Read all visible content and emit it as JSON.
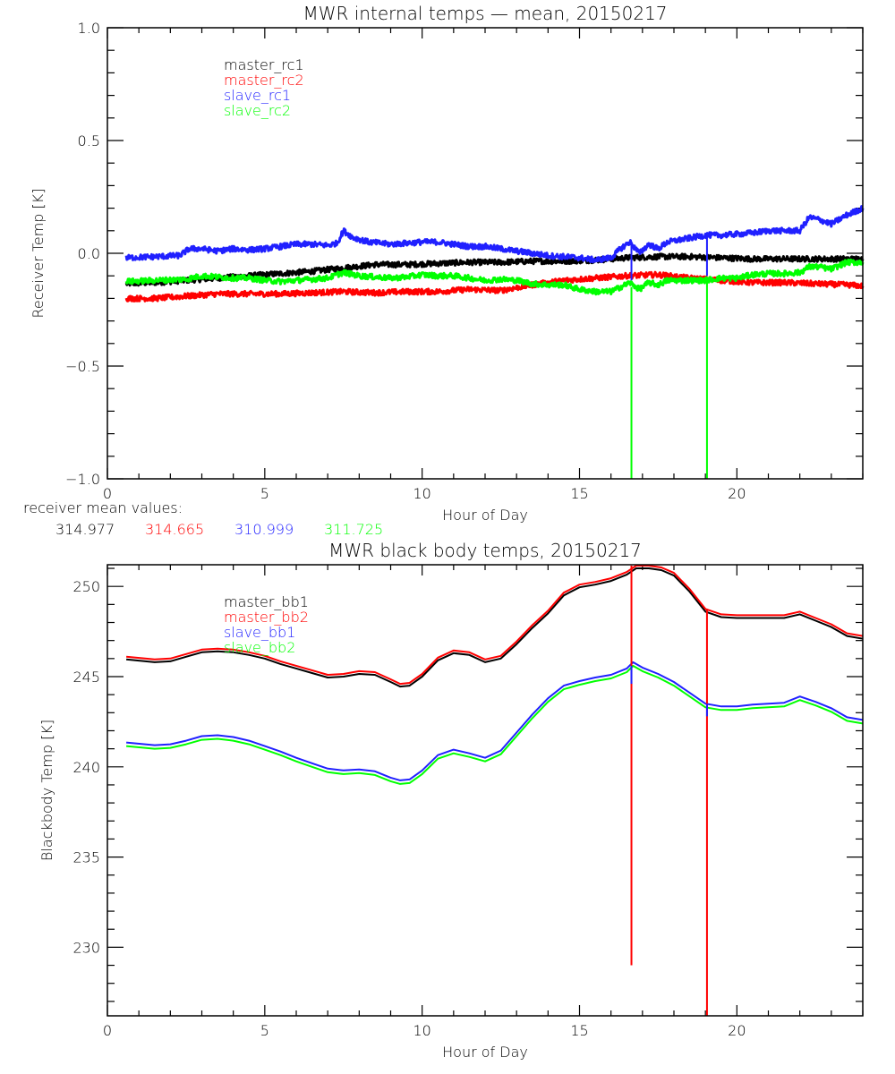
{
  "chart_data": [
    {
      "type": "line",
      "title": "MWR internal temps — mean, 20150217",
      "xlabel": "Hour of Day",
      "ylabel": "Receiver Temp [K]",
      "xlim": [
        0,
        24
      ],
      "ylim": [
        -1.0,
        1.0
      ],
      "xticks": [
        0,
        5,
        10,
        15,
        20
      ],
      "xtick_labels": [
        "0",
        "5",
        "10",
        "15",
        "20"
      ],
      "x_minor_step": 1,
      "yticks": [
        -1.0,
        -0.5,
        0.0,
        0.5,
        1.0
      ],
      "ytick_labels": [
        "-1.0",
        "-0.5",
        "0.0",
        "0.5",
        "1.0"
      ],
      "y_minor_step": 0.1,
      "grid": false,
      "legend_position": "top-left",
      "noise_amplitude": 0.012,
      "series": [
        {
          "name": "master_rc1",
          "color": "#000000",
          "x": [
            0.6,
            1.5,
            2.5,
            3.5,
            4.5,
            5.5,
            6.5,
            7.5,
            8.5,
            9.5,
            10.5,
            11.5,
            12.5,
            13.5,
            14.5,
            15.5,
            16.5,
            17.5,
            18.5,
            19.5,
            20.5,
            21.5,
            22.5,
            23.5,
            24.0
          ],
          "y": [
            -0.135,
            -0.13,
            -0.12,
            -0.11,
            -0.1,
            -0.09,
            -0.08,
            -0.065,
            -0.05,
            -0.05,
            -0.045,
            -0.04,
            -0.04,
            -0.035,
            -0.035,
            -0.03,
            -0.02,
            -0.015,
            -0.015,
            -0.02,
            -0.025,
            -0.025,
            -0.025,
            -0.025,
            -0.025
          ]
        },
        {
          "name": "master_rc2",
          "color": "#ff0000",
          "x": [
            0.6,
            1.5,
            2.5,
            3.5,
            4.5,
            5.5,
            6.5,
            7.5,
            8.5,
            9.5,
            10.5,
            11.5,
            12.5,
            13.5,
            14.5,
            15.5,
            16.5,
            17.5,
            18.5,
            19.5,
            20.5,
            21.5,
            22.5,
            23.5,
            24.0
          ],
          "y": [
            -0.2,
            -0.2,
            -0.19,
            -0.18,
            -0.18,
            -0.18,
            -0.175,
            -0.17,
            -0.175,
            -0.17,
            -0.17,
            -0.16,
            -0.165,
            -0.14,
            -0.12,
            -0.11,
            -0.1,
            -0.095,
            -0.11,
            -0.12,
            -0.13,
            -0.13,
            -0.135,
            -0.14,
            -0.145
          ]
        },
        {
          "name": "slave_rc1",
          "color": "#2020ff",
          "x": [
            0.6,
            1.5,
            2.3,
            2.6,
            3.0,
            3.5,
            4.0,
            4.5,
            5.0,
            5.5,
            6.0,
            6.5,
            7.0,
            7.3,
            7.5,
            7.8,
            8.3,
            9.0,
            9.5,
            10.0,
            10.5,
            11.0,
            11.5,
            12.0,
            12.5,
            13.0,
            13.5,
            14.0,
            14.5,
            15.0,
            15.5,
            16.0,
            16.3,
            16.6,
            16.9,
            17.2,
            17.5,
            17.8,
            18.2,
            18.6,
            19.0,
            19.5,
            20.0,
            20.5,
            21.0,
            21.5,
            22.0,
            22.3,
            22.6,
            23.0,
            23.5,
            24.0
          ],
          "y": [
            -0.02,
            -0.015,
            -0.01,
            0.02,
            0.02,
            0.01,
            0.02,
            0.015,
            0.02,
            0.03,
            0.04,
            0.04,
            0.035,
            0.045,
            0.1,
            0.07,
            0.05,
            0.04,
            0.045,
            0.05,
            0.05,
            0.04,
            0.03,
            0.03,
            0.02,
            0.01,
            0.0,
            -0.01,
            -0.015,
            -0.02,
            -0.03,
            -0.02,
            0.02,
            0.05,
            0.0,
            0.04,
            0.02,
            0.05,
            0.06,
            0.07,
            0.08,
            0.08,
            0.085,
            0.09,
            0.1,
            0.1,
            0.1,
            0.16,
            0.15,
            0.13,
            0.17,
            0.2
          ]
        },
        {
          "name": "slave_rc2",
          "color": "#00ff00",
          "x": [
            0.6,
            1.5,
            2.5,
            3.0,
            3.5,
            4.0,
            4.5,
            5.0,
            5.5,
            6.0,
            6.5,
            7.0,
            7.5,
            8.0,
            8.5,
            9.0,
            9.5,
            10.0,
            10.5,
            11.0,
            11.5,
            12.0,
            12.5,
            13.0,
            13.5,
            14.0,
            14.5,
            15.0,
            15.5,
            16.0,
            16.3,
            16.6,
            16.9,
            17.2,
            17.5,
            17.8,
            18.2,
            18.6,
            19.0,
            19.5,
            20.0,
            20.5,
            21.0,
            21.5,
            22.0,
            22.3,
            22.6,
            23.0,
            23.5,
            24.0
          ],
          "y": [
            -0.125,
            -0.12,
            -0.115,
            -0.1,
            -0.105,
            -0.11,
            -0.11,
            -0.12,
            -0.125,
            -0.12,
            -0.115,
            -0.11,
            -0.085,
            -0.1,
            -0.105,
            -0.11,
            -0.105,
            -0.095,
            -0.1,
            -0.1,
            -0.11,
            -0.12,
            -0.115,
            -0.12,
            -0.135,
            -0.14,
            -0.14,
            -0.16,
            -0.17,
            -0.17,
            -0.15,
            -0.13,
            -0.16,
            -0.13,
            -0.14,
            -0.12,
            -0.12,
            -0.12,
            -0.12,
            -0.11,
            -0.11,
            -0.095,
            -0.09,
            -0.09,
            -0.085,
            -0.06,
            -0.06,
            -0.07,
            -0.04,
            -0.04
          ]
        }
      ],
      "spikes": [
        {
          "x": 16.65,
          "series": "slave_rc2",
          "color": "#00ff00",
          "y_from": -0.15,
          "y_to": -1.0
        },
        {
          "x": 16.65,
          "series": "slave_rc1",
          "color": "#2020ff",
          "y_from": 0.04,
          "y_to": -0.12
        },
        {
          "x": 19.05,
          "series": "slave_rc2",
          "color": "#00ff00",
          "y_from": -0.13,
          "y_to": -1.0
        },
        {
          "x": 19.05,
          "series": "slave_rc1",
          "color": "#2020ff",
          "y_from": 0.07,
          "y_to": -0.1
        }
      ],
      "annotation": {
        "label": "receiver mean values:",
        "values": [
          {
            "text": "314.977",
            "color": "#000000"
          },
          {
            "text": "314.665",
            "color": "#ff0000"
          },
          {
            "text": "310.999",
            "color": "#2020ff"
          },
          {
            "text": "311.725",
            "color": "#00ff00"
          }
        ]
      }
    },
    {
      "type": "line",
      "title": "MWR black body temps, 20150217",
      "xlabel": "Hour of Day",
      "ylabel": "Blackbody Temp [K]",
      "xlim": [
        0,
        24
      ],
      "ylim": [
        226.2,
        251.2
      ],
      "xticks": [
        0,
        5,
        10,
        15,
        20
      ],
      "xtick_labels": [
        "0",
        "5",
        "10",
        "15",
        "20"
      ],
      "x_minor_step": 1,
      "yticks": [
        230,
        235,
        240,
        245,
        250
      ],
      "ytick_labels": [
        "230",
        "235",
        "240",
        "245",
        "250"
      ],
      "y_minor_step": 1,
      "grid": false,
      "legend_position": "top-left",
      "series": [
        {
          "name": "master_bb1",
          "color": "#000000",
          "x": [
            0.6,
            1.5,
            2.0,
            2.5,
            3.0,
            3.5,
            4.0,
            4.5,
            5.0,
            5.5,
            6.0,
            6.5,
            7.0,
            7.5,
            8.0,
            8.5,
            9.0,
            9.3,
            9.6,
            10.0,
            10.5,
            11.0,
            11.5,
            12.0,
            12.5,
            13.0,
            13.5,
            14.0,
            14.5,
            15.0,
            15.5,
            16.0,
            16.5,
            16.8,
            17.2,
            17.6,
            18.0,
            18.5,
            19.0,
            19.5,
            20.0,
            20.5,
            21.0,
            21.5,
            22.0,
            22.5,
            23.0,
            23.5,
            24.0
          ],
          "y": [
            245.95,
            245.8,
            245.85,
            246.1,
            246.35,
            246.4,
            246.35,
            246.2,
            246.0,
            245.7,
            245.45,
            245.2,
            244.95,
            245.0,
            245.15,
            245.1,
            244.7,
            244.45,
            244.5,
            245.0,
            245.9,
            246.3,
            246.2,
            245.8,
            246.0,
            246.8,
            247.7,
            248.5,
            249.5,
            249.95,
            250.1,
            250.3,
            250.65,
            251.0,
            251.0,
            250.9,
            250.6,
            249.7,
            248.6,
            248.3,
            248.25,
            248.25,
            248.25,
            248.25,
            248.45,
            248.1,
            247.75,
            247.25,
            247.1
          ]
        },
        {
          "name": "master_bb2",
          "color": "#ff0000",
          "x": [
            0.6,
            1.5,
            2.0,
            2.5,
            3.0,
            3.5,
            4.0,
            4.5,
            5.0,
            5.5,
            6.0,
            6.5,
            7.0,
            7.5,
            8.0,
            8.5,
            9.0,
            9.3,
            9.6,
            10.0,
            10.5,
            11.0,
            11.5,
            12.0,
            12.5,
            13.0,
            13.5,
            14.0,
            14.5,
            15.0,
            15.5,
            16.0,
            16.5,
            16.8,
            17.2,
            17.6,
            18.0,
            18.5,
            19.0,
            19.5,
            20.0,
            20.5,
            21.0,
            21.5,
            22.0,
            22.5,
            23.0,
            23.5,
            24.0
          ],
          "y": [
            246.1,
            245.95,
            246.0,
            246.25,
            246.5,
            246.55,
            246.5,
            246.35,
            246.15,
            245.85,
            245.6,
            245.35,
            245.1,
            245.15,
            245.3,
            245.25,
            244.85,
            244.6,
            244.65,
            245.15,
            246.05,
            246.45,
            246.35,
            245.95,
            246.15,
            246.95,
            247.85,
            248.65,
            249.65,
            250.1,
            250.25,
            250.45,
            250.8,
            251.15,
            251.15,
            251.05,
            250.75,
            249.85,
            248.75,
            248.45,
            248.4,
            248.4,
            248.4,
            248.4,
            248.6,
            248.25,
            247.9,
            247.4,
            247.25
          ]
        },
        {
          "name": "slave_bb1",
          "color": "#2020ff",
          "x": [
            0.6,
            1.5,
            2.0,
            2.5,
            3.0,
            3.5,
            4.0,
            4.5,
            5.0,
            5.5,
            6.0,
            6.5,
            7.0,
            7.5,
            8.0,
            8.5,
            9.0,
            9.3,
            9.6,
            10.0,
            10.5,
            11.0,
            11.5,
            12.0,
            12.5,
            13.0,
            13.5,
            14.0,
            14.5,
            15.0,
            15.5,
            16.0,
            16.5,
            16.7,
            17.0,
            17.5,
            18.0,
            18.5,
            19.0,
            19.5,
            20.0,
            20.5,
            21.0,
            21.5,
            22.0,
            22.5,
            23.0,
            23.5,
            24.0
          ],
          "y": [
            241.35,
            241.2,
            241.25,
            241.45,
            241.7,
            241.75,
            241.65,
            241.45,
            241.15,
            240.85,
            240.5,
            240.2,
            239.9,
            239.8,
            239.85,
            239.75,
            239.4,
            239.25,
            239.3,
            239.8,
            240.65,
            240.95,
            240.75,
            240.5,
            240.9,
            241.9,
            242.9,
            243.8,
            244.5,
            244.75,
            244.95,
            245.1,
            245.45,
            245.8,
            245.5,
            245.15,
            244.7,
            244.1,
            243.5,
            243.35,
            243.35,
            243.45,
            243.5,
            243.55,
            243.9,
            243.6,
            243.25,
            242.75,
            242.6
          ]
        },
        {
          "name": "slave_bb2",
          "color": "#00ff00",
          "x": [
            0.6,
            1.5,
            2.0,
            2.5,
            3.0,
            3.5,
            4.0,
            4.5,
            5.0,
            5.5,
            6.0,
            6.5,
            7.0,
            7.5,
            8.0,
            8.5,
            9.0,
            9.3,
            9.6,
            10.0,
            10.5,
            11.0,
            11.5,
            12.0,
            12.5,
            13.0,
            13.5,
            14.0,
            14.5,
            15.0,
            15.5,
            16.0,
            16.5,
            16.7,
            17.0,
            17.5,
            18.0,
            18.5,
            19.0,
            19.5,
            20.0,
            20.5,
            21.0,
            21.5,
            22.0,
            22.5,
            23.0,
            23.5,
            24.0
          ],
          "y": [
            241.15,
            241.0,
            241.05,
            241.25,
            241.5,
            241.55,
            241.45,
            241.25,
            240.95,
            240.65,
            240.3,
            240.0,
            239.7,
            239.6,
            239.65,
            239.55,
            239.2,
            239.05,
            239.1,
            239.6,
            240.45,
            240.75,
            240.55,
            240.3,
            240.7,
            241.7,
            242.7,
            243.6,
            244.3,
            244.55,
            244.75,
            244.9,
            245.25,
            245.6,
            245.3,
            244.95,
            244.5,
            243.9,
            243.3,
            243.15,
            243.15,
            243.25,
            243.3,
            243.35,
            243.7,
            243.4,
            243.05,
            242.55,
            242.4
          ]
        }
      ],
      "spikes": [
        {
          "x": 16.65,
          "series": "master_bb2",
          "color": "#ff0000",
          "y_from": 251.15,
          "y_to": 229.0
        },
        {
          "x": 16.65,
          "series": "slave_bb1",
          "color": "#2020ff",
          "y_from": 245.6,
          "y_to": 244.6
        },
        {
          "x": 19.05,
          "series": "master_bb2",
          "color": "#ff0000",
          "y_from": 248.75,
          "y_to": 226.2
        },
        {
          "x": 19.05,
          "series": "slave_bb1",
          "color": "#2020ff",
          "y_from": 243.5,
          "y_to": 242.8
        }
      ]
    }
  ]
}
